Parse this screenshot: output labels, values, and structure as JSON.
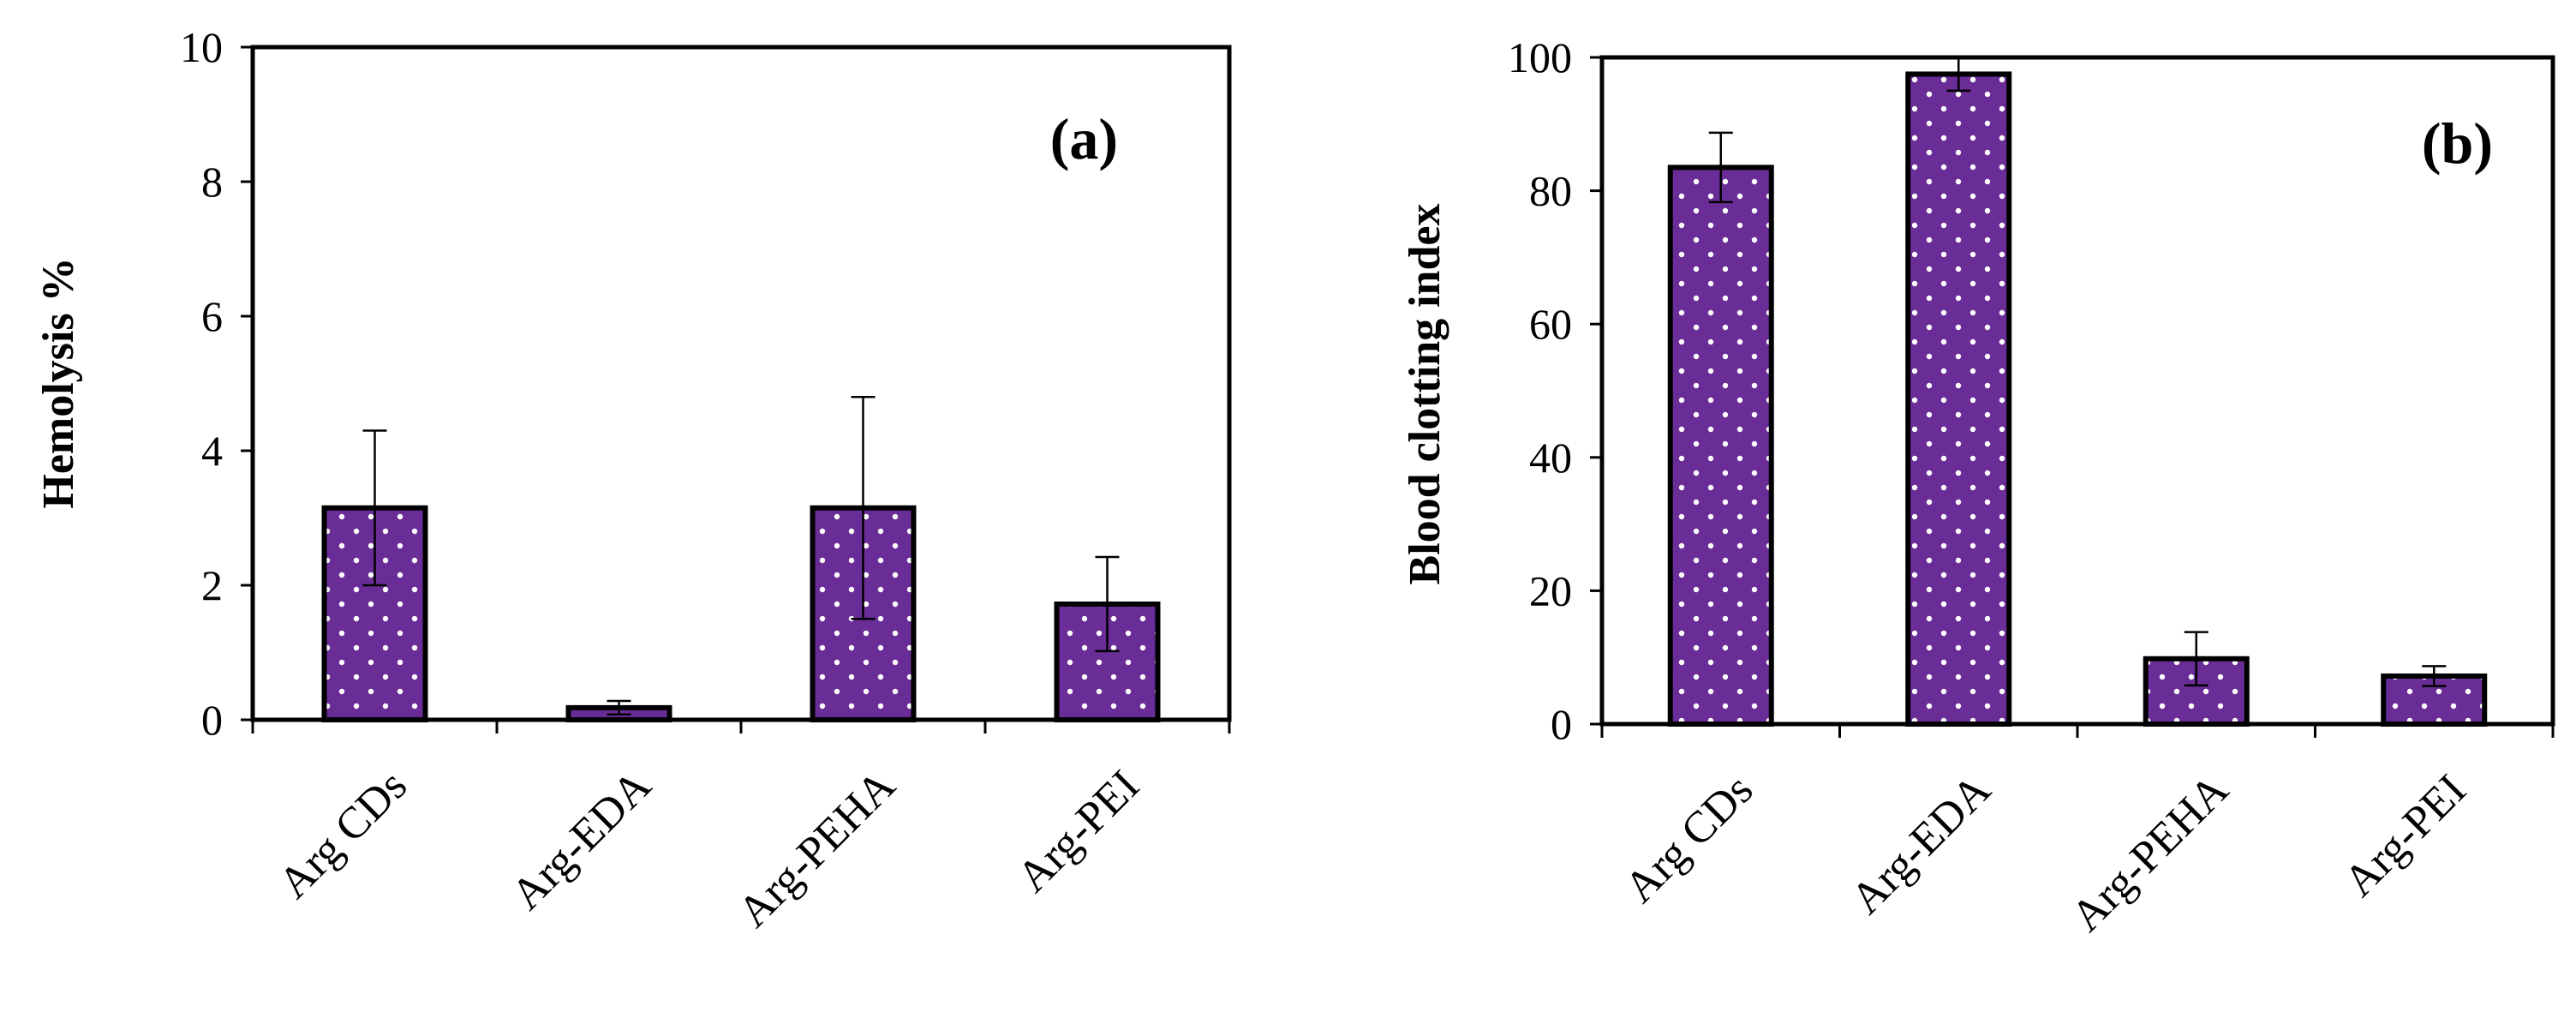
{
  "colors": {
    "bar_fill": "#6a2c96",
    "bar_dot": "#ffffff",
    "bar_stroke": "#000000",
    "background": "#ffffff"
  },
  "chart_data": [
    {
      "type": "bar",
      "panel_label": "(a)",
      "ylabel": "Hemolysis %",
      "xlabel": "",
      "categories": [
        "Arg CDs",
        "Arg-EDA",
        "Arg-PEHA",
        "Arg-PEI"
      ],
      "values": [
        3.15,
        0.18,
        3.15,
        1.72
      ],
      "errors": [
        1.15,
        0.1,
        1.65,
        0.7
      ],
      "ylim": [
        0,
        10
      ],
      "yticks": [
        "0",
        "2",
        "4",
        "6",
        "8",
        "10"
      ],
      "grid": false
    },
    {
      "type": "bar",
      "panel_label": "(b)",
      "ylabel": "Blood clotting index",
      "xlabel": "",
      "categories": [
        "Arg CDs",
        "Arg-EDA",
        "Arg-PEHA",
        "Arg-PEI"
      ],
      "values": [
        83.5,
        97.5,
        9.8,
        7.2
      ],
      "errors": [
        5.2,
        2.5,
        4.0,
        1.5
      ],
      "ylim": [
        0,
        100
      ],
      "yticks": [
        "0",
        "20",
        "40",
        "60",
        "80",
        "100"
      ],
      "grid": false
    }
  ]
}
